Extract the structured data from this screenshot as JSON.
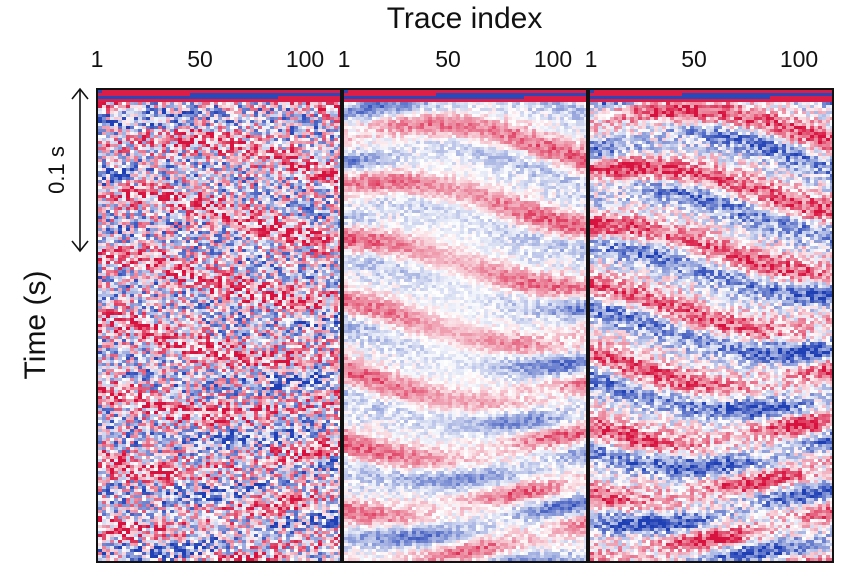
{
  "chart_data": {
    "type": "heatmap",
    "title": "",
    "xlabel": "Trace index",
    "ylabel": "Time (s)",
    "scale_bar": "0.1 s",
    "colormap": {
      "negative": "#1f3fb5",
      "zero": "#ffffff",
      "positive": "#d8123e"
    },
    "panels": [
      {
        "ticks": [
          "1",
          "50",
          "100"
        ],
        "xlim": [
          1,
          120
        ]
      },
      {
        "ticks": [
          "1",
          "50",
          "100"
        ],
        "xlim": [
          1,
          120
        ]
      },
      {
        "ticks": [
          "1",
          "50",
          "100"
        ],
        "xlim": [
          1,
          120
        ]
      }
    ]
  }
}
